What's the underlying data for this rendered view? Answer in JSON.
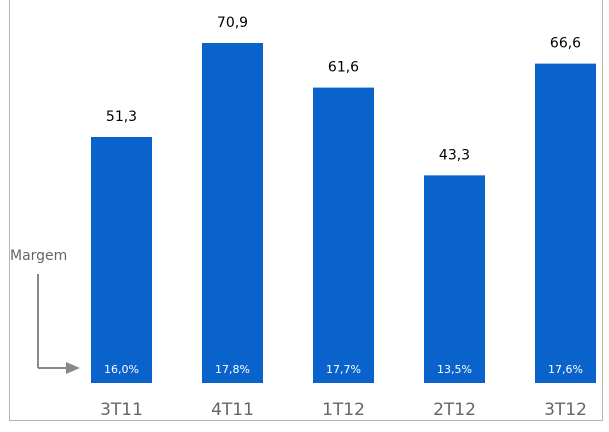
{
  "margin_caption": "Margem",
  "colors": {
    "bar": "#0a62cb",
    "value_label": "#000000",
    "margin_label": "#ffffff",
    "category_label": "#666666",
    "arrow": "#888888",
    "border": "#b5b5b5"
  },
  "chart_data": {
    "type": "bar",
    "categories": [
      "3T11",
      "4T11",
      "1T12",
      "2T12",
      "3T12"
    ],
    "values": [
      51.3,
      70.9,
      61.6,
      43.3,
      66.6
    ],
    "value_labels": [
      "51,3",
      "70,9",
      "61,6",
      "43,3",
      "66,6"
    ],
    "margin_labels": [
      "16,0%",
      "17,8%",
      "17,7%",
      "13,5%",
      "17,6%"
    ],
    "title": "",
    "xlabel": "",
    "ylabel": "",
    "ylim": [
      0,
      75
    ],
    "grid": false,
    "legend": "none"
  }
}
